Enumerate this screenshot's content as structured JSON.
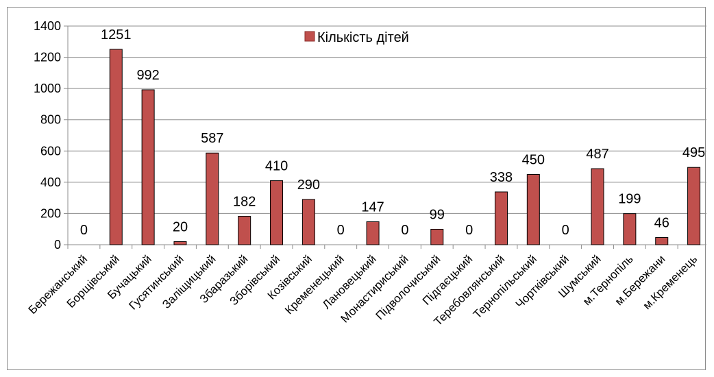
{
  "chart_data": {
    "type": "bar",
    "title": "",
    "xlabel": "",
    "ylabel": "",
    "ylim": [
      0,
      1400
    ],
    "yticks": [
      0,
      200,
      400,
      600,
      800,
      1000,
      1200,
      1400
    ],
    "grid": true,
    "legend_position": "top-center",
    "categories": [
      "Бережанський",
      "Борщівський",
      "Бучацький",
      "Гусятинський",
      "Заліщицький",
      "Збаразький",
      "Зборівський",
      "Козівський",
      "Кременецький",
      "Лановецький",
      "Монастириський",
      "Підволочиський",
      "Підгаєцький",
      "Теребовлянський",
      "Тернопільський",
      "Чортківський",
      "Шумський",
      "м.Тернопіль",
      "м.Бережани",
      "м.Кременець"
    ],
    "series": [
      {
        "name": "Кількість дітей",
        "color": "#c0504d",
        "values": [
          0,
          1251,
          992,
          20,
          587,
          182,
          410,
          290,
          0,
          147,
          0,
          99,
          0,
          338,
          450,
          0,
          487,
          199,
          46,
          495
        ]
      }
    ]
  }
}
